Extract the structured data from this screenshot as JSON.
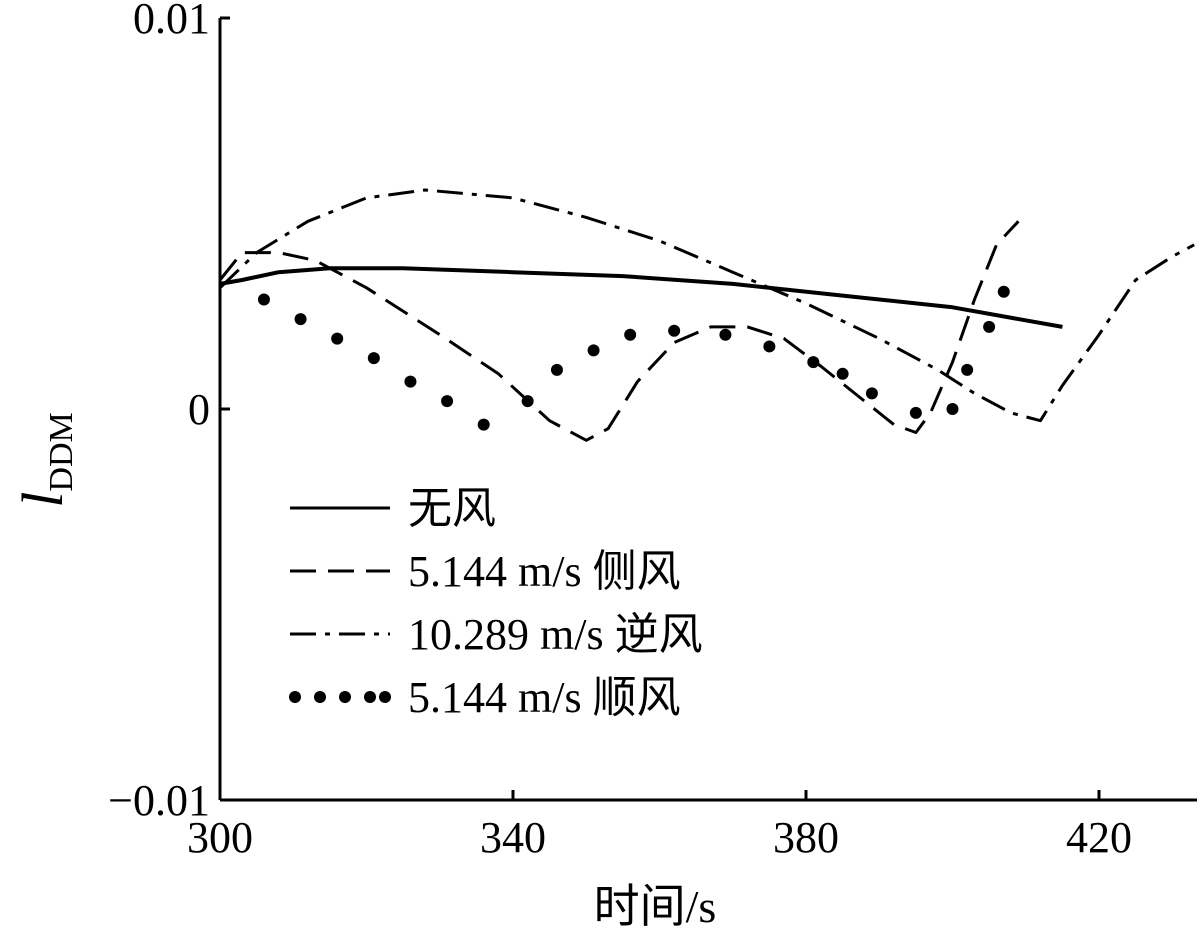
{
  "chart_data": {
    "type": "line",
    "xlabel": "时间/s",
    "ylabel": "l",
    "ylabel_sub": "DDM",
    "xlim": [
      300,
      433
    ],
    "ylim": [
      -0.01,
      0.01
    ],
    "xticks": [
      300,
      340,
      380,
      420
    ],
    "xtick_labels": [
      "300",
      "340",
      "380",
      "420"
    ],
    "yticks": [
      0.01,
      0,
      -0.01
    ],
    "ytick_labels": [
      "0.01",
      "0",
      "−0.01"
    ],
    "legend_position": "lower-left",
    "series": [
      {
        "name": "无风",
        "style": "solid",
        "x": [
          300,
          303,
          308,
          315,
          325,
          340,
          355,
          370,
          385,
          400,
          415
        ],
        "y": [
          0.0032,
          0.0033,
          0.0035,
          0.0036,
          0.0036,
          0.0035,
          0.0034,
          0.0032,
          0.0029,
          0.0026,
          0.0021
        ]
      },
      {
        "name": "5.144 m/s 侧风",
        "style": "dashed",
        "x": [
          300,
          303,
          308,
          313,
          320,
          330,
          338,
          345,
          350,
          353,
          357,
          362,
          367,
          372,
          377,
          382,
          388,
          392,
          395,
          397,
          400,
          403,
          406,
          409
        ],
        "y": [
          0.0033,
          0.004,
          0.004,
          0.0038,
          0.0031,
          0.0019,
          0.0009,
          -0.0003,
          -0.0008,
          -0.0005,
          0.0007,
          0.0017,
          0.0021,
          0.0021,
          0.0018,
          0.0011,
          0.0002,
          -0.0004,
          -0.0006,
          -0.0001,
          0.0012,
          0.0028,
          0.0042,
          0.0048
        ]
      },
      {
        "name": "10.289 m/s 逆风",
        "style": "dashdot",
        "x": [
          300,
          305,
          312,
          320,
          328,
          340,
          350,
          360,
          370,
          380,
          390,
          398,
          403,
          408,
          412,
          415,
          420,
          425,
          430,
          433
        ],
        "y": [
          0.0031,
          0.004,
          0.0048,
          0.0054,
          0.0056,
          0.0054,
          0.0049,
          0.0043,
          0.0035,
          0.0027,
          0.0018,
          0.001,
          0.0004,
          -0.0001,
          -0.0003,
          0.0006,
          0.0019,
          0.0033,
          0.0039,
          0.0042
        ]
      },
      {
        "name": "5.144 m/s 顺风",
        "style": "dotted",
        "x": [
          306,
          311,
          316,
          321,
          326,
          331,
          336,
          342,
          346,
          351,
          356,
          362,
          369,
          375,
          381,
          385,
          389,
          395,
          400,
          402,
          405,
          407
        ],
        "y": [
          0.0028,
          0.0023,
          0.0018,
          0.0013,
          0.0007,
          0.0002,
          -0.0004,
          0.0002,
          0.001,
          0.0015,
          0.0019,
          0.002,
          0.0019,
          0.0016,
          0.0012,
          0.0009,
          0.0004,
          -0.0001,
          0.0,
          0.001,
          0.0021,
          0.003
        ]
      }
    ]
  }
}
